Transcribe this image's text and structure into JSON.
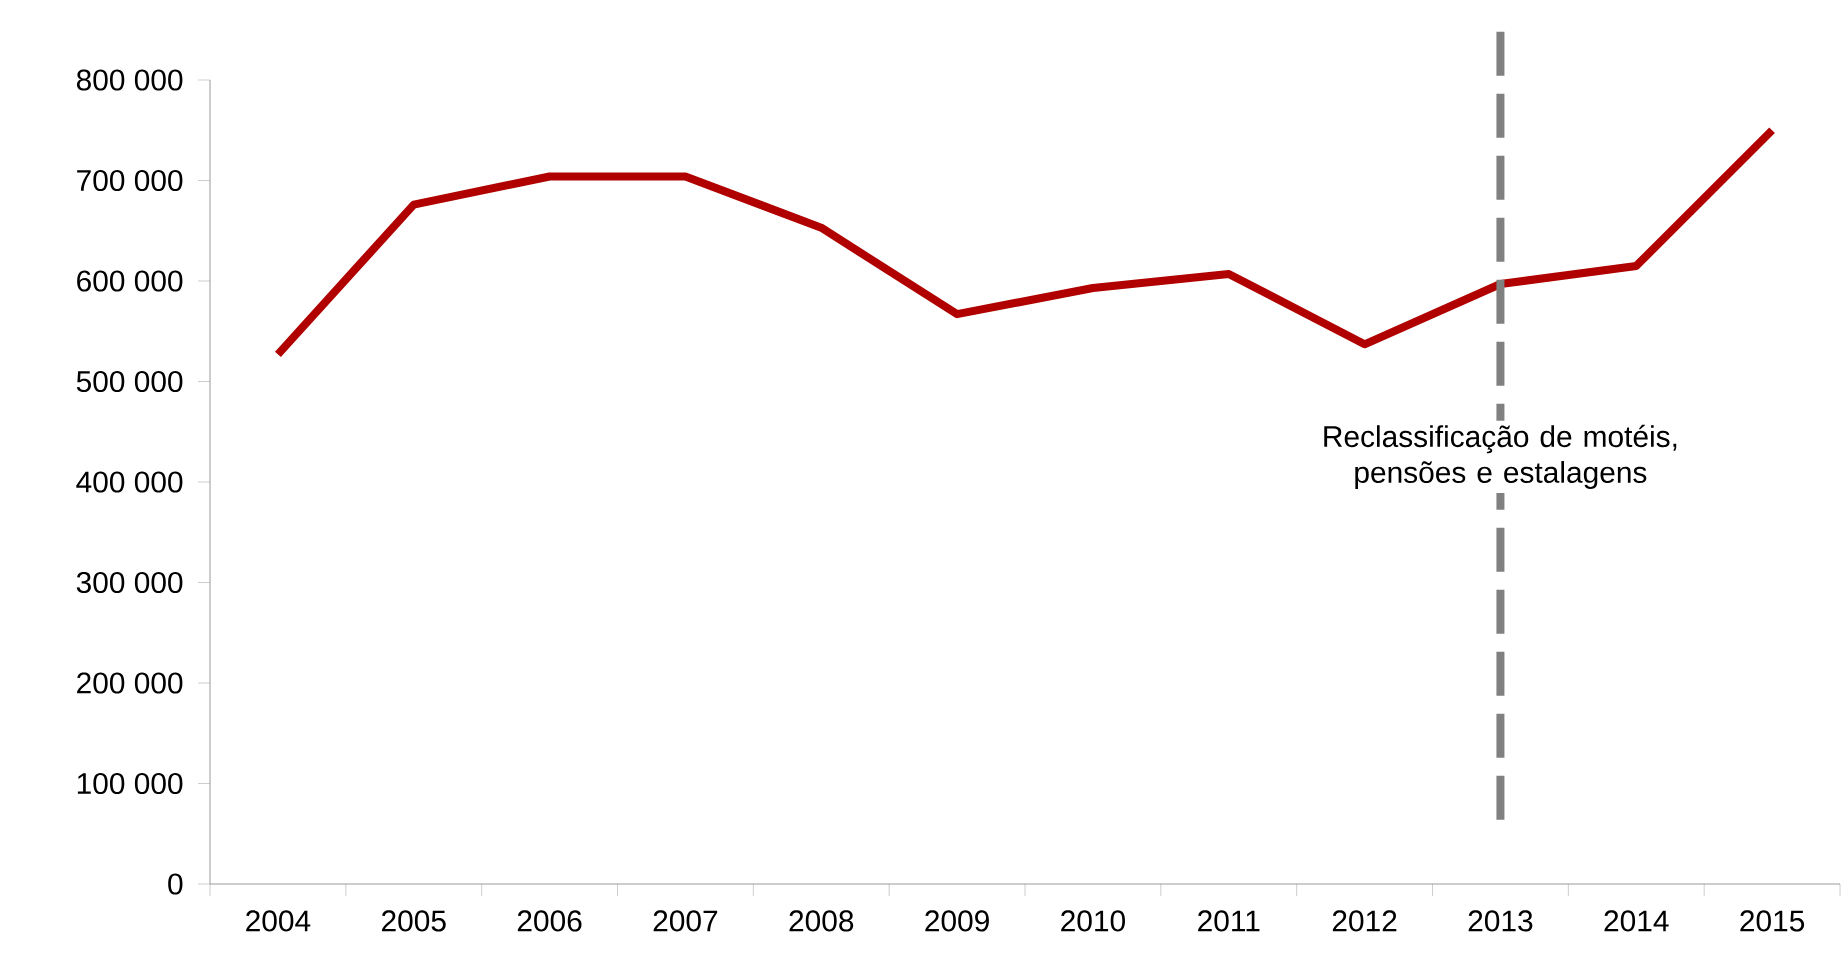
{
  "chart_data": {
    "type": "line",
    "categories": [
      "2004",
      "2005",
      "2006",
      "2007",
      "2008",
      "2009",
      "2010",
      "2011",
      "2012",
      "2013",
      "2014",
      "2015"
    ],
    "series": [
      {
        "color": "#b00000",
        "values": [
          527000,
          676000,
          704000,
          704000,
          653000,
          567000,
          593000,
          607000,
          537000,
          597000,
          615000,
          750000
        ]
      }
    ],
    "ylim": [
      0,
      800000
    ],
    "yticks": [
      {
        "value": 0,
        "label": "0"
      },
      {
        "value": 100000,
        "label": "100 000"
      },
      {
        "value": 200000,
        "label": "200 000"
      },
      {
        "value": 300000,
        "label": "300 000"
      },
      {
        "value": 400000,
        "label": "400 000"
      },
      {
        "value": 500000,
        "label": "500 000"
      },
      {
        "value": 600000,
        "label": "600 000"
      },
      {
        "value": 700000,
        "label": "700 000"
      },
      {
        "value": 800000,
        "label": "800 000"
      }
    ],
    "ref_lines": [
      {
        "axis": "x",
        "value": "2013",
        "label": "Reclassificação de motéis, pensões e estalagens",
        "color": "#808080",
        "line_style": "dashed"
      }
    ]
  }
}
